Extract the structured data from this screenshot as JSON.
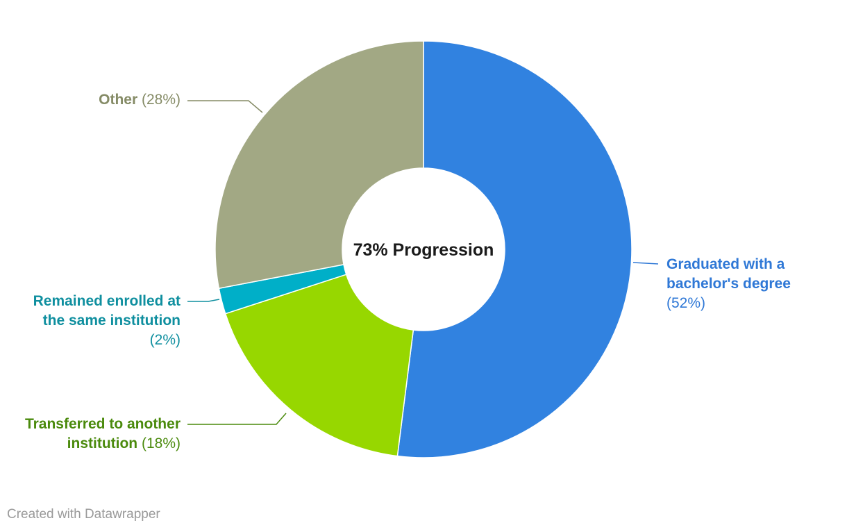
{
  "chart_data": {
    "type": "pie",
    "donut": true,
    "center_label": "73% Progression",
    "slices": [
      {
        "name_lines": [
          "Graduated with a",
          "bachelor's degree"
        ],
        "percent_label": "(52%)",
        "value": 52,
        "color": "#3182e0",
        "label_color": "#2f78d6"
      },
      {
        "name_lines": [
          "Transferred to another",
          "institution"
        ],
        "percent_label": "(18%)",
        "value": 18,
        "color": "#97d700",
        "label_color": "#4a8a0c"
      },
      {
        "name_lines": [
          "Remained enrolled at",
          "the same institution"
        ],
        "percent_label": "(2%)",
        "value": 2,
        "color": "#00afc8",
        "label_color": "#0f8f9f"
      },
      {
        "name_lines": [
          "Other"
        ],
        "percent_label": "(28%)",
        "value": 28,
        "color": "#a2a884",
        "label_color": "#858b66"
      }
    ],
    "legend": "none"
  },
  "footer": {
    "credit": "Created with Datawrapper"
  }
}
